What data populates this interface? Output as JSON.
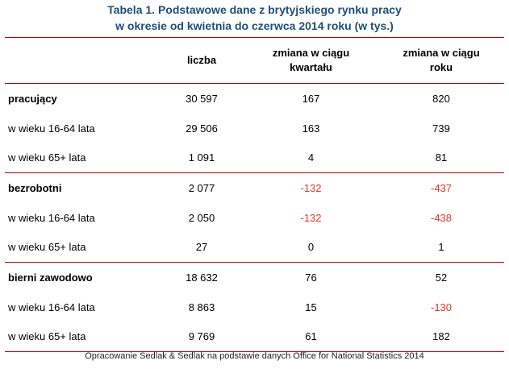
{
  "title": {
    "line1": "Tabela 1. Podstawowe dane z brytyjskiego rynku pracy",
    "line2": "w okresie od kwietnia do czerwca 2014 roku (w tys.)"
  },
  "table": {
    "headers": [
      "",
      "liczba",
      "zmiana w ciągu kwartału",
      "zmiana w ciągu roku"
    ],
    "header_lines": {
      "col2": [
        "zmiana w ciągu",
        "kwartału"
      ],
      "col3": [
        "zmiana w ciągu",
        "roku"
      ]
    },
    "rows": [
      {
        "label": "pracujący",
        "liczba": "30 597",
        "kwartal": "167",
        "rok": "820"
      },
      {
        "label": "w wieku 16-64 lata",
        "liczba": "29 506",
        "kwartal": "163",
        "rok": "739"
      },
      {
        "label": "w wieku 65+ lata",
        "liczba": "1 091",
        "kwartal": "4",
        "rok": "81"
      },
      {
        "label": "bezrobotni",
        "liczba": "2 077",
        "kwartal": "-132",
        "rok": "-437"
      },
      {
        "label": "w wieku 16-64 lata",
        "liczba": "2 050",
        "kwartal": "-132",
        "rok": "-438"
      },
      {
        "label": "w wieku 65+ lata",
        "liczba": "27",
        "kwartal": "0",
        "rok": "1"
      },
      {
        "label": "bierni zawodowo",
        "liczba": "18 632",
        "kwartal": "76",
        "rok": "52"
      },
      {
        "label": "w wieku 16-64 lata",
        "liczba": "8 863",
        "kwartal": "15",
        "rok": "-130"
      },
      {
        "label": "w wieku 65+ lata",
        "liczba": "9 769",
        "kwartal": "61",
        "rok": "182"
      }
    ]
  },
  "source": "Opracowanie Sedlak & Sedlak na podstawie danych Office for National Statistics 2014",
  "colors": {
    "title": "#1f4e79",
    "rule": "#c00000",
    "negative": "#e8352b"
  }
}
